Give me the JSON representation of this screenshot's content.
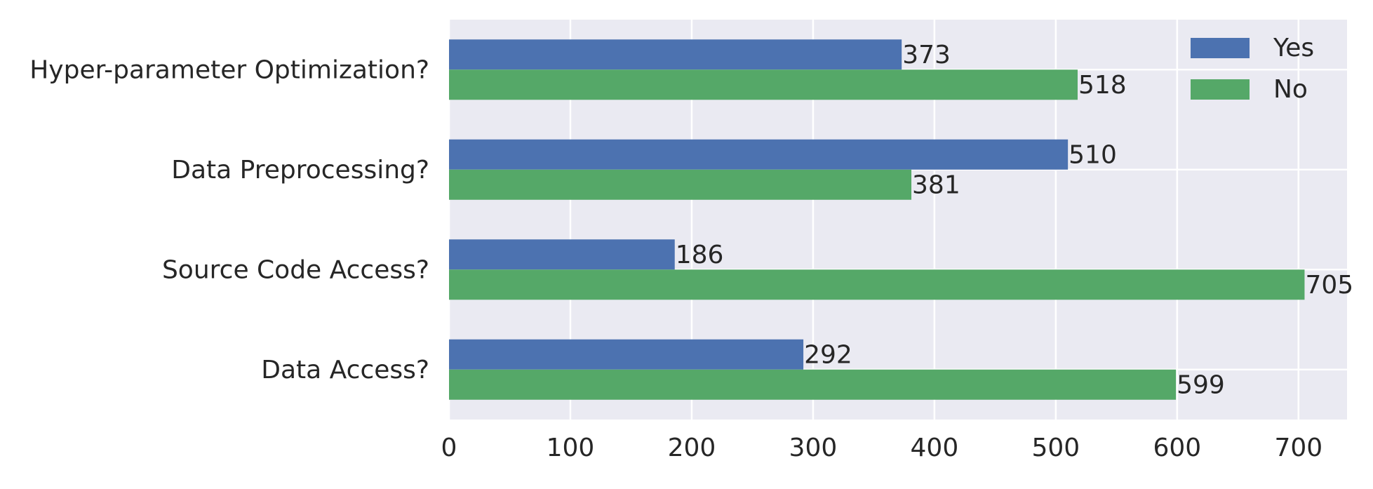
{
  "chart_data": {
    "type": "bar",
    "orientation": "horizontal",
    "categories": [
      "Data Access?",
      "Source Code Access?",
      "Data Preprocessing?",
      "Hyper-parameter Optimization?"
    ],
    "series": [
      {
        "name": "Yes",
        "color": "#4C72B0",
        "values": [
          292,
          186,
          510,
          373
        ]
      },
      {
        "name": "No",
        "color": "#55A868",
        "values": [
          599,
          705,
          381,
          518
        ]
      }
    ],
    "xlim": [
      0,
      740
    ],
    "xticks": [
      0,
      100,
      200,
      300,
      400,
      500,
      600,
      700
    ],
    "title": "",
    "xlabel": "",
    "ylabel": "",
    "grid": true,
    "legend_position": "top-right",
    "style": {
      "plot_background": "#EAEAF2",
      "grid_color": "#FFFFFF",
      "text_color": "#262626"
    }
  }
}
